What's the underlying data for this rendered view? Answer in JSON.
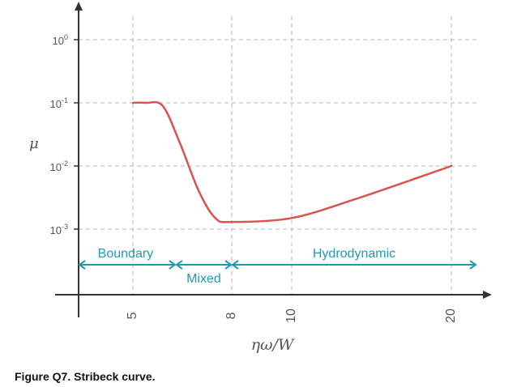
{
  "caption": "Figure Q7. Stribeck curve.",
  "chart_data": {
    "type": "line",
    "title": "",
    "xlabel": "ηω/W",
    "ylabel": "μ",
    "yscale": "log",
    "grid": true,
    "x_ticks": [
      {
        "value": 5,
        "label": "5"
      },
      {
        "value": 8,
        "label": "8"
      },
      {
        "value": 10,
        "label": "10"
      },
      {
        "value": 20,
        "label": "20"
      }
    ],
    "y_ticks": [
      {
        "value": 1,
        "base": "10",
        "exp": "0"
      },
      {
        "value": 0.1,
        "base": "10",
        "exp": "-1"
      },
      {
        "value": 0.01,
        "base": "10",
        "exp": "-2"
      },
      {
        "value": 0.001,
        "base": "10",
        "exp": "-3"
      }
    ],
    "series": [
      {
        "color": "#d9534f",
        "x": [
          5,
          5.4,
          5.9,
          6.4,
          7.0,
          7.5,
          8.0,
          10.0,
          14.0,
          20.0
        ],
        "y": [
          0.1,
          0.1,
          0.09,
          0.025,
          0.004,
          0.0015,
          0.0013,
          0.0015,
          0.003,
          0.01
        ]
      }
    ],
    "regimes": [
      {
        "name": "Boundary",
        "from": 3.2,
        "to": 6.3
      },
      {
        "name": "Mixed",
        "from": 6.3,
        "to": 8.0
      },
      {
        "name": "Hydrodynamic",
        "from": 8.0,
        "to": 20.8
      }
    ],
    "regime_color": "#1f9bb3"
  }
}
